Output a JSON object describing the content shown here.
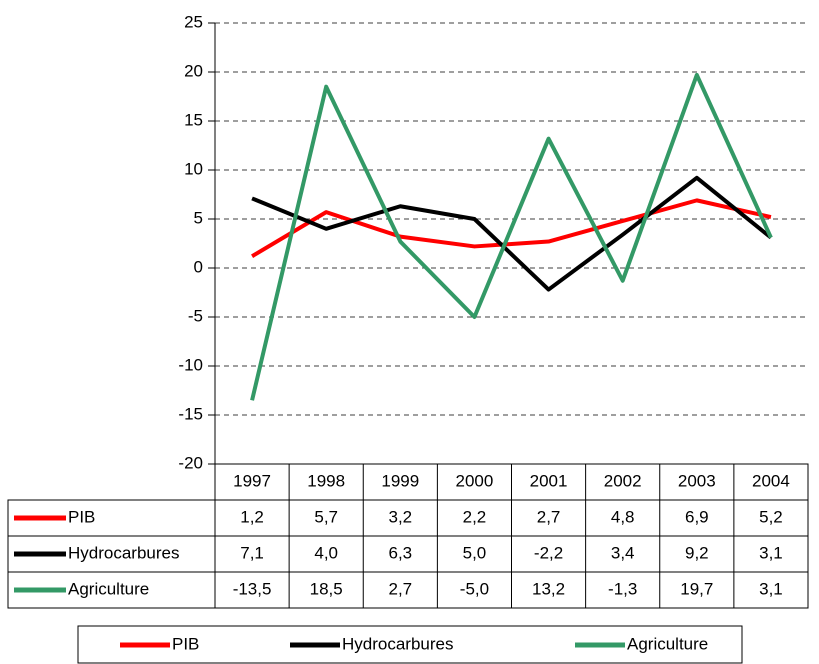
{
  "chart_data": {
    "type": "line",
    "categories": [
      "1997",
      "1998",
      "1999",
      "2000",
      "2001",
      "2002",
      "2003",
      "2004"
    ],
    "series": [
      {
        "name": "PIB",
        "color": "#ff0000",
        "values": [
          1.2,
          5.7,
          3.2,
          2.2,
          2.7,
          4.8,
          6.9,
          5.2
        ],
        "value_labels": [
          "1,2",
          "5,7",
          "3,2",
          "2,2",
          "2,7",
          "4,8",
          "6,9",
          "5,2"
        ]
      },
      {
        "name": "Hydrocarbures",
        "color": "#000000",
        "values": [
          7.1,
          4.0,
          6.3,
          5.0,
          -2.2,
          3.4,
          9.2,
          3.1
        ],
        "value_labels": [
          "7,1",
          "4,0",
          "6,3",
          "5,0",
          "-2,2",
          "3,4",
          "9,2",
          "3,1"
        ]
      },
      {
        "name": "Agriculture",
        "color": "#339966",
        "values": [
          -13.5,
          18.5,
          2.7,
          -5.0,
          13.2,
          -1.3,
          19.7,
          3.1
        ],
        "value_labels": [
          "-13,5",
          "18,5",
          "2,7",
          "-5,0",
          "13,2",
          "-1,3",
          "19,7",
          "3,1"
        ]
      }
    ],
    "ylim": [
      -20,
      25
    ],
    "yticks": [
      -20,
      -15,
      -10,
      -5,
      0,
      5,
      10,
      15,
      20,
      25
    ],
    "grid": true,
    "data_table": true,
    "legend": "bottom"
  }
}
